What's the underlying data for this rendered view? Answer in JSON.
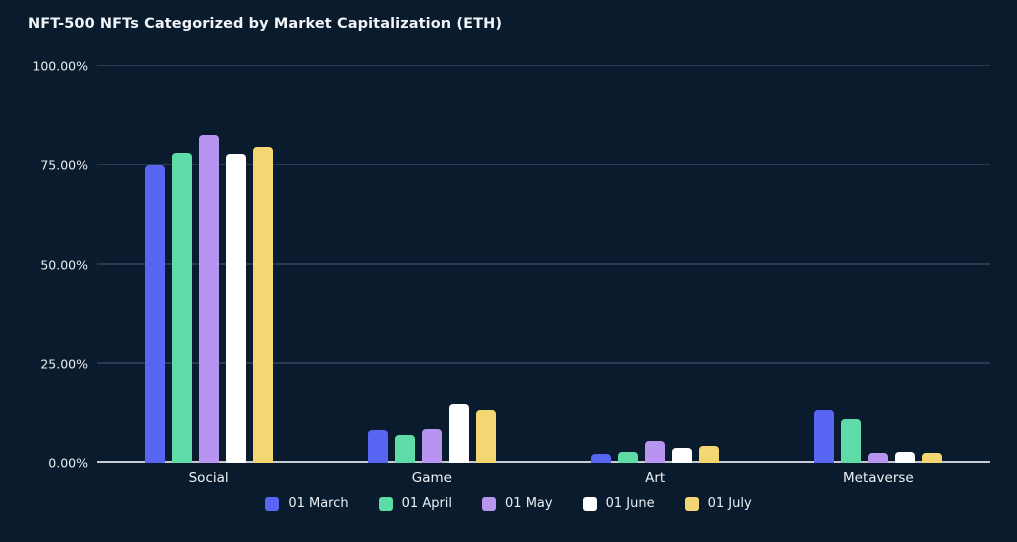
{
  "page": {
    "background": "#0A1B2E",
    "gridline_color": "#2A3A52",
    "baseline_color": "#C6CBD3",
    "text_color": "#EAF0F6"
  },
  "chart_data": {
    "type": "bar",
    "title": "NFT-500 NFTs Categorized by Market Capitalization (ETH)",
    "xlabel": "",
    "ylabel": "",
    "ylim": [
      0,
      100
    ],
    "grid": true,
    "legend_position": "bottom",
    "categories": [
      "Social",
      "Game",
      "Art",
      "Metaverse"
    ],
    "series": [
      {
        "name": "01 March",
        "color": "#5865F2",
        "values": [
          75.0,
          8.2,
          2.3,
          13.4
        ]
      },
      {
        "name": "01 April",
        "color": "#5FDBA8",
        "values": [
          78.0,
          7.0,
          2.7,
          11.2
        ]
      },
      {
        "name": "01 May",
        "color": "#B794F0",
        "values": [
          82.6,
          8.6,
          5.5,
          2.6
        ]
      },
      {
        "name": "01 June",
        "color": "#FFFFFF",
        "values": [
          77.8,
          14.8,
          3.7,
          2.9
        ]
      },
      {
        "name": "01 July",
        "color": "#F4D673",
        "values": [
          79.6,
          13.3,
          4.2,
          2.4
        ]
      }
    ],
    "yticks": [
      {
        "label": "100.00%",
        "value": 100
      },
      {
        "label": "75.00%",
        "value": 75
      },
      {
        "label": "50.00%",
        "value": 50
      },
      {
        "label": "25.00%",
        "value": 25
      },
      {
        "label": "0.00%",
        "value": 0
      }
    ]
  }
}
